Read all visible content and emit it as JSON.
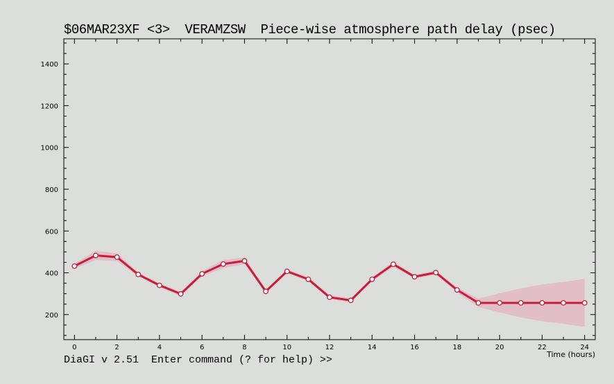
{
  "window": {
    "title": "$06MAR23XF <3>  VERAMZSW  Piece-wise atmosphere path delay (psec)",
    "status": "DiaGI v 2.51  Enter command (? for help) >>"
  },
  "chart_data": {
    "type": "line",
    "title": "$06MAR23XF <3>  VERAMZSW  Piece-wise atmosphere path delay (psec)",
    "xlabel": "Time (hours)",
    "ylabel": "",
    "xlim": [
      -0.5,
      24.5
    ],
    "ylim": [
      80,
      1520
    ],
    "x_ticks": [
      0,
      2,
      4,
      6,
      8,
      10,
      12,
      14,
      16,
      18,
      20,
      22,
      24
    ],
    "y_ticks": [
      200,
      400,
      600,
      800,
      1000,
      1200,
      1400
    ],
    "grid": false,
    "series": [
      {
        "color": "#c41e3a",
        "band_color": "#e8a6b8",
        "x": [
          0,
          1,
          2,
          3,
          4,
          5,
          6,
          7,
          8,
          9,
          10,
          11,
          12,
          13,
          14,
          15,
          16,
          17,
          18,
          19,
          20,
          21,
          22,
          23,
          24
        ],
        "y": [
          432,
          483,
          475,
          392,
          340,
          299,
          395,
          442,
          457,
          311,
          407,
          369,
          283,
          268,
          369,
          441,
          381,
          401,
          318,
          256,
          256,
          256,
          256,
          256,
          256
        ],
        "err": [
          12,
          22,
          18,
          10,
          10,
          10,
          12,
          20,
          16,
          10,
          10,
          10,
          10,
          10,
          10,
          12,
          10,
          10,
          12,
          20,
          46,
          70,
          88,
          100,
          115
        ]
      }
    ]
  }
}
